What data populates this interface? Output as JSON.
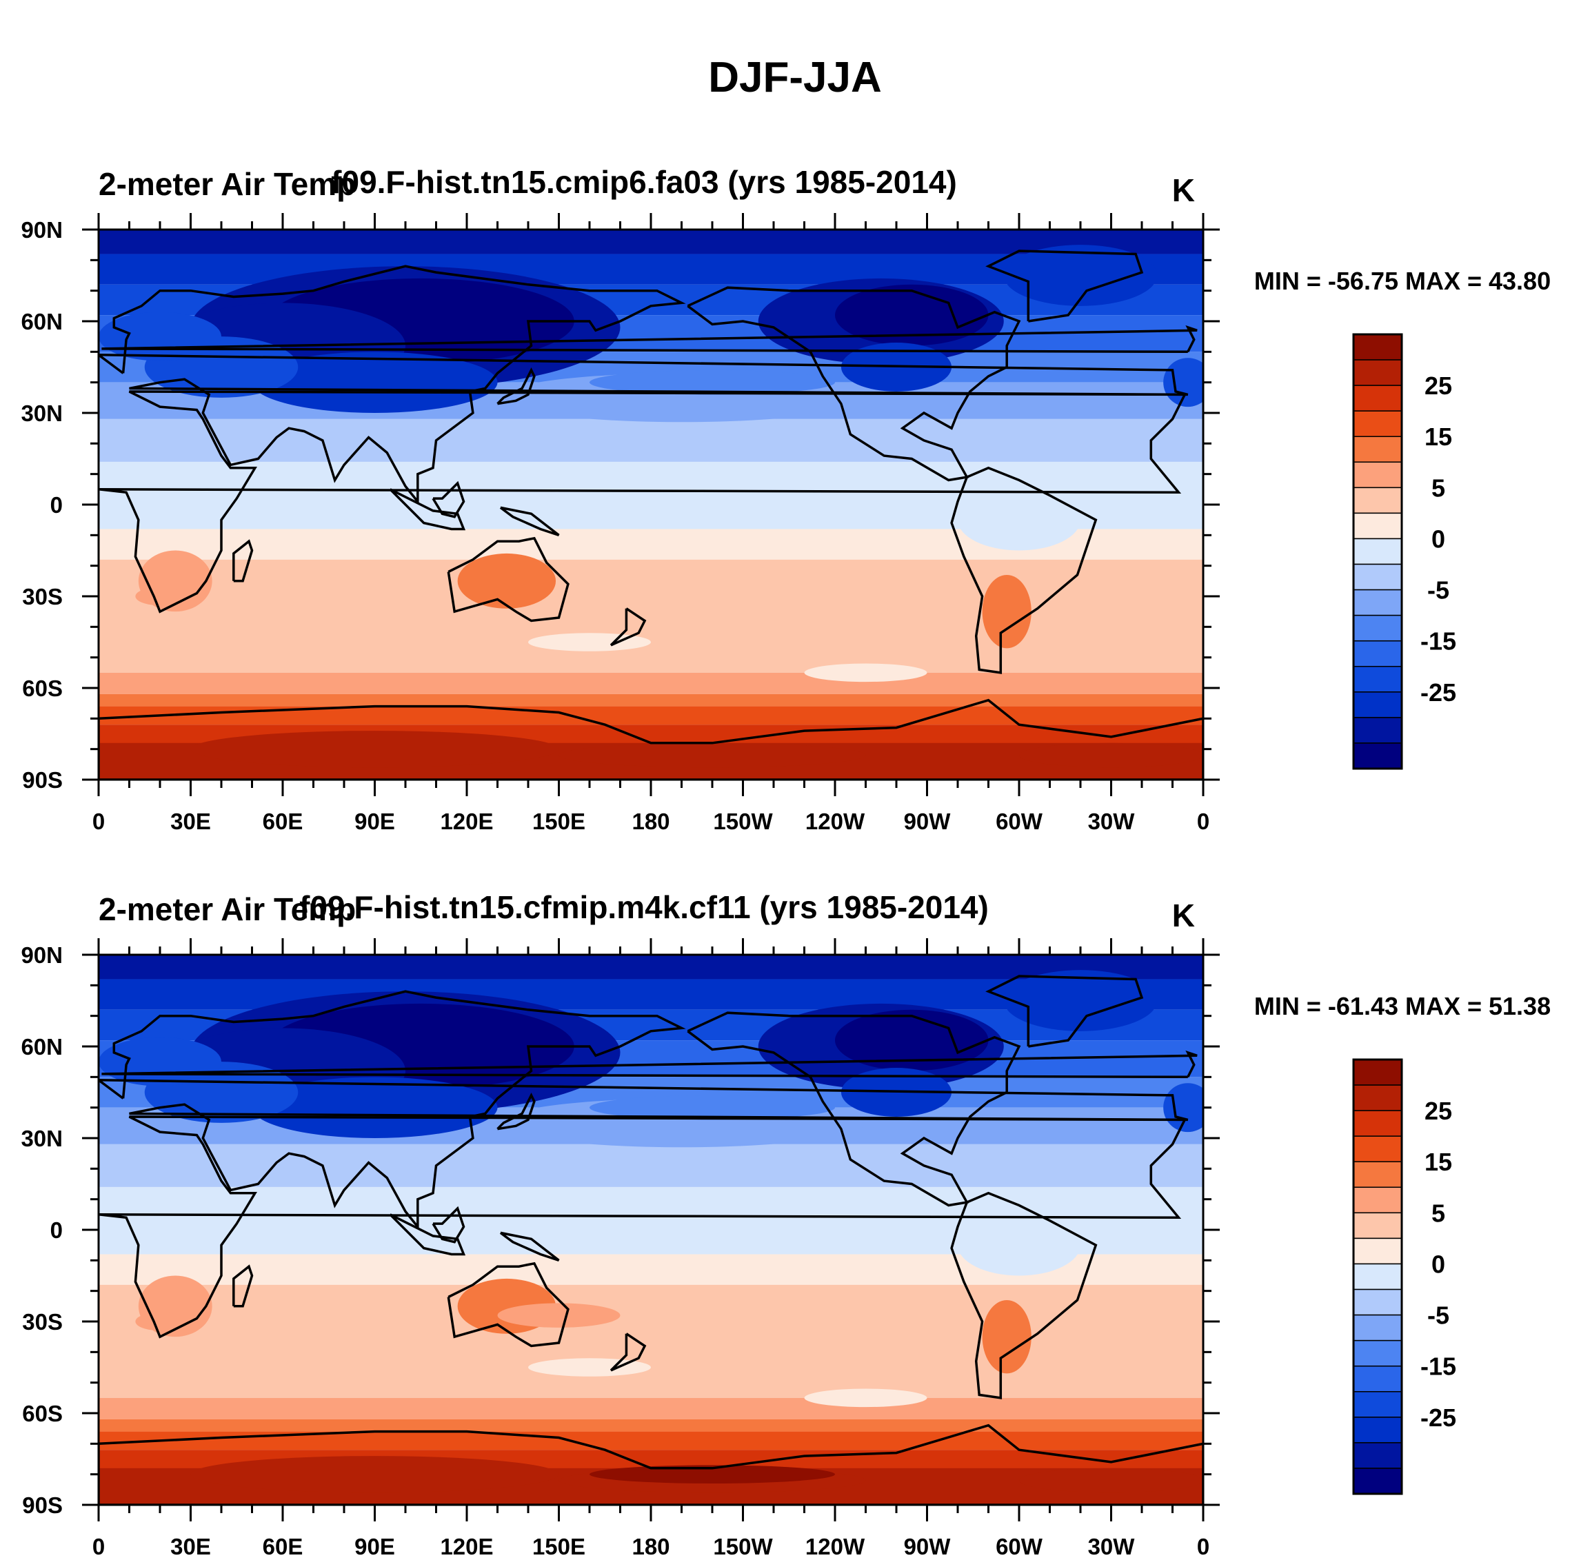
{
  "figure_title": "DJF-JJA",
  "colors": {
    "levels": [
      "#00007f",
      "#0015a0",
      "#0032c8",
      "#0f4bdc",
      "#2a66ea",
      "#4d84f2",
      "#7ea6f7",
      "#b0cafb",
      "#d8e8fc",
      "#fdeade",
      "#fdc6ab",
      "#fca17c",
      "#f5783f",
      "#ea4e16",
      "#d63309",
      "#b32005",
      "#8e0e00"
    ],
    "coast": "#000000",
    "frame": "#000000"
  },
  "panels": [
    {
      "left_title": "2-meter Air Temp",
      "center_title": "f09.F-hist.tn15.cmip6.fa03 (yrs 1985-2014)",
      "units": "K",
      "minmax": "MIN = -56.75 MAX =  43.80"
    },
    {
      "left_title": "2-meter Air Temp",
      "center_title": "f09.F-hist.tn15.cfmip.m4k.cf11 (yrs 1985-2014)",
      "units": "K",
      "minmax": "MIN = -61.43 MAX =  51.38"
    }
  ],
  "axes": {
    "lat_labels": [
      "90N",
      "60N",
      "30N",
      "0",
      "30S",
      "60S",
      "90S"
    ],
    "lon_labels": [
      "0",
      "30E",
      "60E",
      "90E",
      "120E",
      "150E",
      "180",
      "150W",
      "120W",
      "90W",
      "60W",
      "30W",
      "0"
    ]
  },
  "colorbar": {
    "labels": [
      "25",
      "15",
      "5",
      "0",
      "-5",
      "-15",
      "-25"
    ]
  },
  "chart_data": [
    {
      "type": "heatmap",
      "title": "f09.F-hist.tn15.cmip6.fa03 (yrs 1985-2014)",
      "variable": "2-meter Air Temp",
      "units": "K",
      "xlabel": "",
      "ylabel": "",
      "xlim": [
        0,
        360
      ],
      "ylim": [
        -90,
        90
      ],
      "x_ticks": [
        "0",
        "30E",
        "60E",
        "90E",
        "120E",
        "150E",
        "180",
        "150W",
        "120W",
        "90W",
        "60W",
        "30W",
        "0"
      ],
      "y_ticks": [
        "90N",
        "60N",
        "30N",
        "0",
        "30S",
        "60S",
        "90S"
      ],
      "min": -56.75,
      "max": 43.8,
      "contour_levels": [
        -35,
        -30,
        -25,
        -20,
        -15,
        -10,
        -5,
        -2,
        0,
        2,
        5,
        10,
        15,
        20,
        25,
        30
      ],
      "colorbar_labels": [
        "25",
        "15",
        "5",
        "0",
        "-5",
        "-15",
        "-25"
      ]
    },
    {
      "type": "heatmap",
      "title": "f09.F-hist.tn15.cfmip.m4k.cf11 (yrs 1985-2014)",
      "variable": "2-meter Air Temp",
      "units": "K",
      "xlabel": "",
      "ylabel": "",
      "xlim": [
        0,
        360
      ],
      "ylim": [
        -90,
        90
      ],
      "x_ticks": [
        "0",
        "30E",
        "60E",
        "90E",
        "120E",
        "150E",
        "180",
        "150W",
        "120W",
        "90W",
        "60W",
        "30W",
        "0"
      ],
      "y_ticks": [
        "90N",
        "60N",
        "30N",
        "0",
        "30S",
        "60S",
        "90S"
      ],
      "min": -61.43,
      "max": 51.38,
      "contour_levels": [
        -35,
        -30,
        -25,
        -20,
        -15,
        -10,
        -5,
        -2,
        0,
        2,
        5,
        10,
        15,
        20,
        25,
        30
      ],
      "colorbar_labels": [
        "25",
        "15",
        "5",
        "0",
        "-5",
        "-15",
        "-25"
      ]
    }
  ]
}
